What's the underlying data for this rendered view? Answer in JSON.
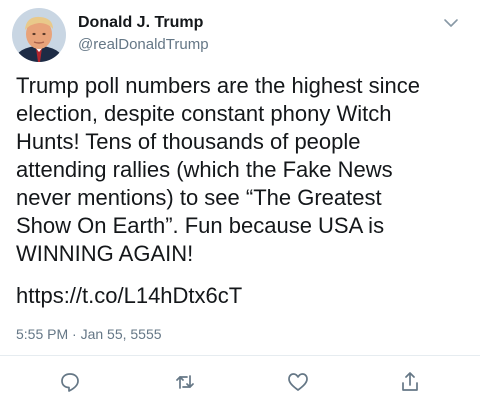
{
  "author": {
    "name": "Donald J. Trump",
    "handle": "@realDonaldTrump"
  },
  "tweet": {
    "text": "Trump poll numbers are the highest since\nelection, despite constant phony Witch\nHunts! Tens of thousands of people\nattending rallies (which the Fake News\nnever mentions) to see “The Greatest\nShow On Earth”. Fun because USA is\nWINNING AGAIN!",
    "link": "https://t.co/L14hDtx6cT",
    "timestamp": "5:55 PM · Jan 55, 5555"
  },
  "icons": {
    "more": "chevron-down-icon",
    "reply": "reply-icon",
    "retweet": "retweet-icon",
    "like": "heart-icon",
    "share": "share-icon"
  },
  "colors": {
    "text": "#14171a",
    "secondary": "#657786",
    "icon": "#657786",
    "divider": "#e6ecf0"
  }
}
